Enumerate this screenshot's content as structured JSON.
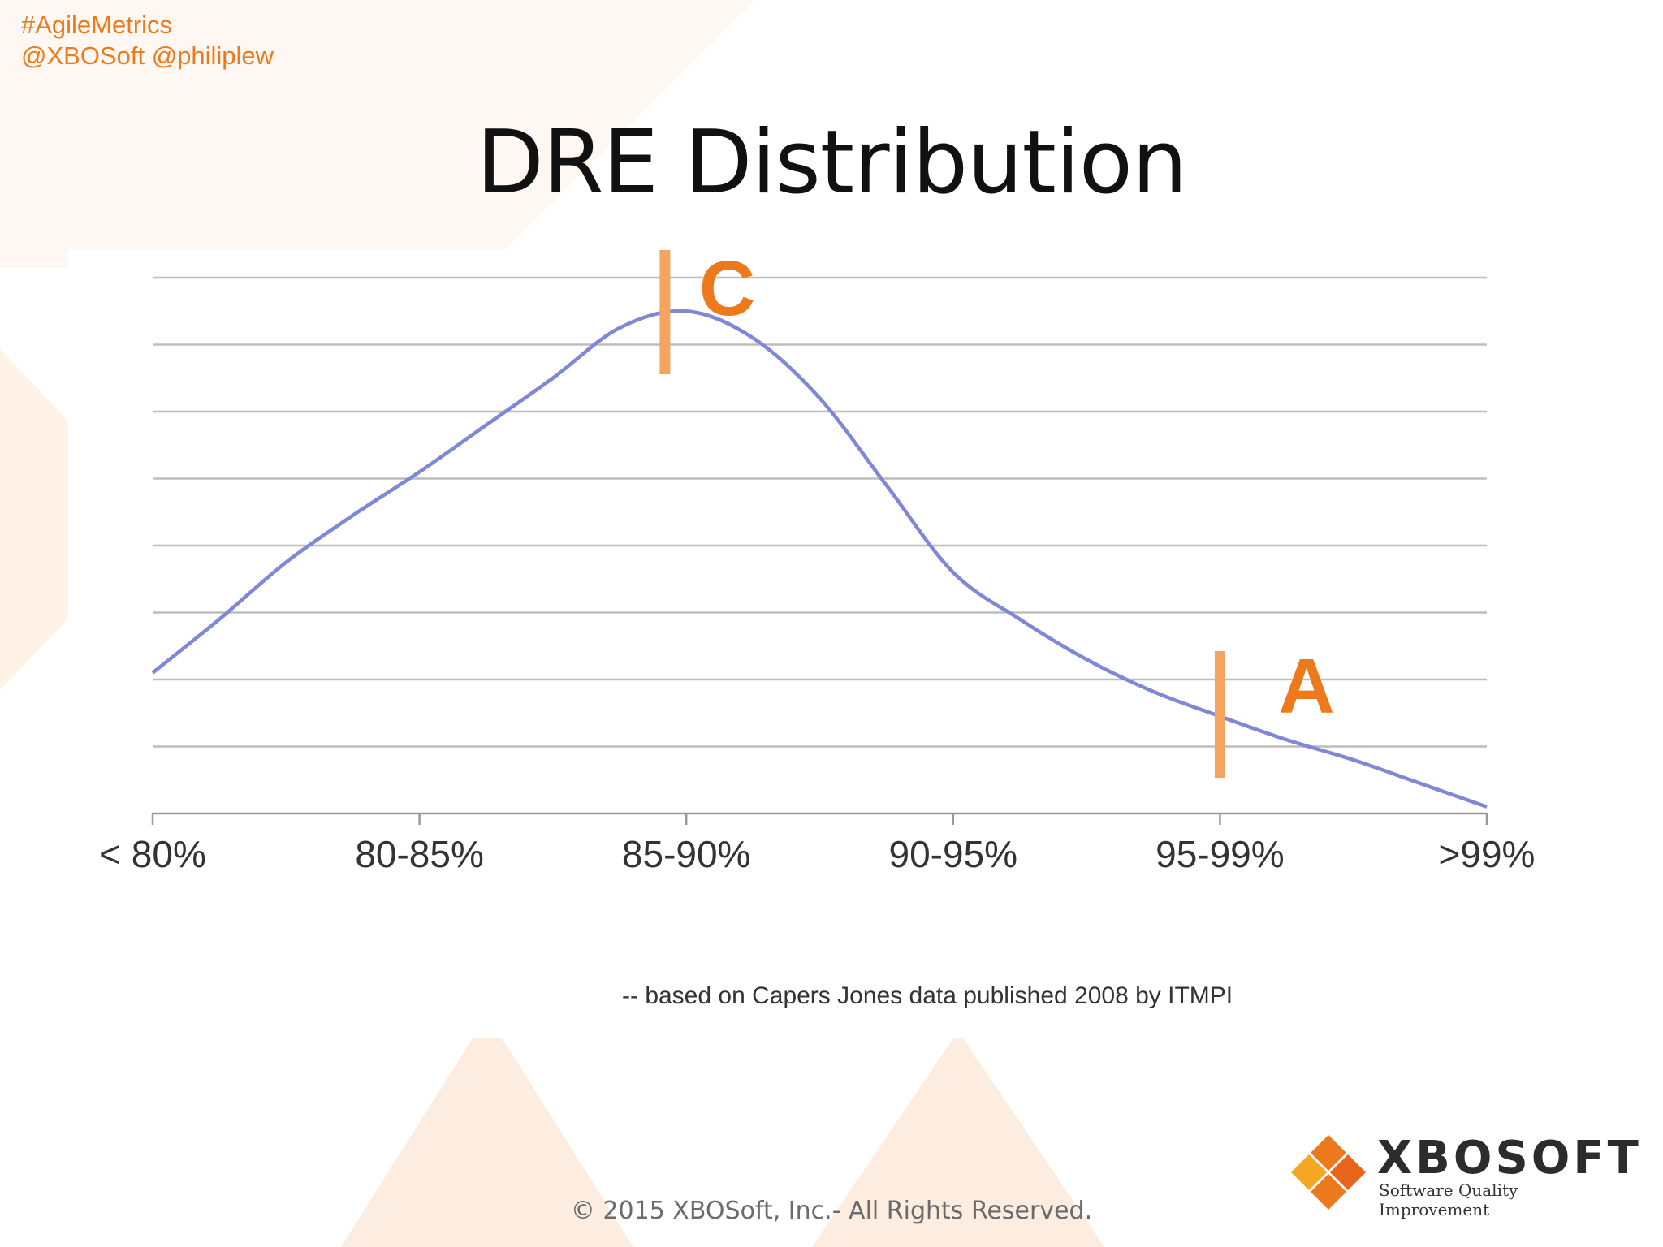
{
  "header": {
    "hashtag": "#AgileMetrics",
    "handles": "@XBOSoft @philiplew"
  },
  "slide": {
    "title": "DRE Distribution",
    "source_note": "-- based on Capers Jones data published 2008 by ITMPI",
    "copyright": "© 2015 XBOSoft, Inc.- All Rights Reserved."
  },
  "logo": {
    "wordmark": "XBOSOFT",
    "tagline": "Software Quality Improvement"
  },
  "colors": {
    "accent": "#ec7a1c",
    "curve": "#7f87d6",
    "marker": "#f4a460",
    "grid": "#bdbdbd"
  },
  "chart_data": {
    "type": "line",
    "title": "",
    "xlabel": "",
    "ylabel": "",
    "categories": [
      "< 80%",
      "80-85%",
      "85-90%",
      "90-95%",
      "95-99%",
      ">99%"
    ],
    "x": [
      0,
      0.25,
      0.5,
      0.75,
      1.0,
      1.25,
      1.5,
      1.75,
      2.0,
      2.25,
      2.5,
      2.75,
      3.0,
      3.25,
      3.5,
      3.75,
      4.0,
      4.25,
      4.5,
      4.75,
      5.0
    ],
    "series": [
      {
        "values": [
          2.1,
          2.9,
          3.75,
          4.45,
          5.1,
          5.8,
          6.5,
          7.25,
          7.5,
          7.1,
          6.2,
          4.9,
          3.6,
          2.9,
          2.3,
          1.82,
          1.45,
          1.1,
          0.8,
          0.45,
          0.1
        ]
      }
    ],
    "ylim": [
      0,
      8
    ],
    "gridlines": 8,
    "grid": true,
    "markers": [
      {
        "label": "C",
        "x": 1.92
      },
      {
        "label": "A",
        "x": 4.0
      }
    ]
  }
}
